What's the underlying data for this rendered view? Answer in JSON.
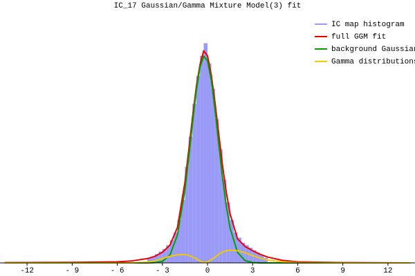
{
  "chart_data": {
    "type": "line",
    "title": "IC_17 Gaussian/Gamma Mixture Model(3) fit",
    "legend": "upper right",
    "xlim": [
      -13.8,
      13.8
    ],
    "ylim": [
      0,
      1
    ],
    "xticks": [
      {
        "value": -12,
        "label": "-12"
      },
      {
        "value": -9,
        "label": "- 9"
      },
      {
        "value": -6,
        "label": "- 6"
      },
      {
        "value": -3,
        "label": "- 3"
      },
      0,
      3,
      6,
      9,
      12
    ],
    "histogram": {
      "name": "IC map histogram",
      "color": "#9a9af7",
      "bins": [
        -4,
        -3.75,
        -3.5,
        -3.25,
        -3,
        -2.75,
        -2.5,
        -2.25,
        -2,
        -1.75,
        -1.5,
        -1.25,
        -1,
        -0.75,
        -0.5,
        -0.25,
        0,
        0.25,
        0.5,
        0.75,
        1,
        1.25,
        1.5,
        1.75,
        2,
        2.25,
        2.5,
        2.75,
        3,
        3.25,
        3.5,
        3.75,
        4
      ],
      "values": [
        0.02,
        0.025,
        0.035,
        0.045,
        0.055,
        0.07,
        0.09,
        0.12,
        0.17,
        0.25,
        0.38,
        0.5,
        0.63,
        0.74,
        0.82,
        0.87,
        0.79,
        0.69,
        0.57,
        0.45,
        0.33,
        0.24,
        0.17,
        0.12,
        0.1,
        0.08,
        0.07,
        0.06,
        0.05,
        0.04,
        0.03,
        0.02
      ]
    },
    "x": [
      -13.5,
      -9,
      -6,
      -5,
      -4,
      -3.5,
      -3,
      -2.5,
      -2,
      -1.5,
      -1.25,
      -1,
      -0.75,
      -0.5,
      -0.25,
      0,
      0.25,
      0.5,
      0.75,
      1,
      1.25,
      1.5,
      2,
      2.5,
      3,
      3.5,
      4,
      5,
      6,
      9,
      13.5
    ],
    "series": [
      {
        "name": "full GGM fit",
        "color": "#ee0000",
        "values": [
          0.001,
          0.002,
          0.004,
          0.008,
          0.017,
          0.026,
          0.042,
          0.07,
          0.14,
          0.32,
          0.445,
          0.575,
          0.695,
          0.785,
          0.84,
          0.82,
          0.745,
          0.635,
          0.51,
          0.385,
          0.28,
          0.195,
          0.095,
          0.065,
          0.048,
          0.034,
          0.023,
          0.01,
          0.004,
          0.001,
          0
        ]
      },
      {
        "name": "background Gaussian",
        "color": "#00a000",
        "values": [
          0,
          0,
          0,
          0,
          0,
          0.001,
          0.006,
          0.031,
          0.11,
          0.289,
          0.415,
          0.552,
          0.68,
          0.775,
          0.819,
          0.8,
          0.724,
          0.606,
          0.47,
          0.337,
          0.224,
          0.138,
          0.041,
          0.009,
          0.0015,
          0,
          0,
          0,
          0,
          0,
          0
        ]
      },
      {
        "name": "Gamma distributions",
        "color": "#eecc00",
        "values": [
          0,
          0,
          0,
          0,
          0.003,
          0.008,
          0.017,
          0.026,
          0.032,
          0.033,
          0.03,
          0.024,
          0.016,
          0.008,
          0.002,
          0.004,
          0.012,
          0.023,
          0.034,
          0.043,
          0.048,
          0.05,
          0.048,
          0.04,
          0.029,
          0.019,
          0.011,
          0.004,
          0.001,
          0,
          0
        ]
      }
    ]
  }
}
